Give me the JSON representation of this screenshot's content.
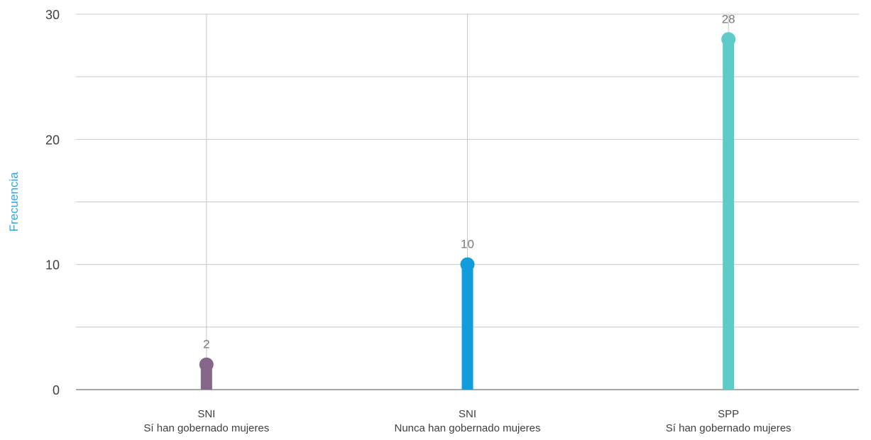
{
  "chart_data": {
    "type": "bar",
    "style": "lollipop",
    "categories": [
      [
        "SNI",
        "Sí han gobernado mujeres"
      ],
      [
        "SNI",
        "Nunca han gobernado mujeres"
      ],
      [
        "SPP",
        "Sí han gobernado mujeres"
      ]
    ],
    "values": [
      2,
      10,
      28
    ],
    "value_labels": [
      "2",
      "10",
      "28"
    ],
    "colors": [
      "#856789",
      "#119ddb",
      "#5ecbc9"
    ],
    "ylabel": "Frecuencia",
    "ylabel_color": "#29a9de",
    "ylim": [
      0,
      30
    ],
    "yticks": [
      0,
      10,
      20,
      30
    ],
    "grid": true
  }
}
